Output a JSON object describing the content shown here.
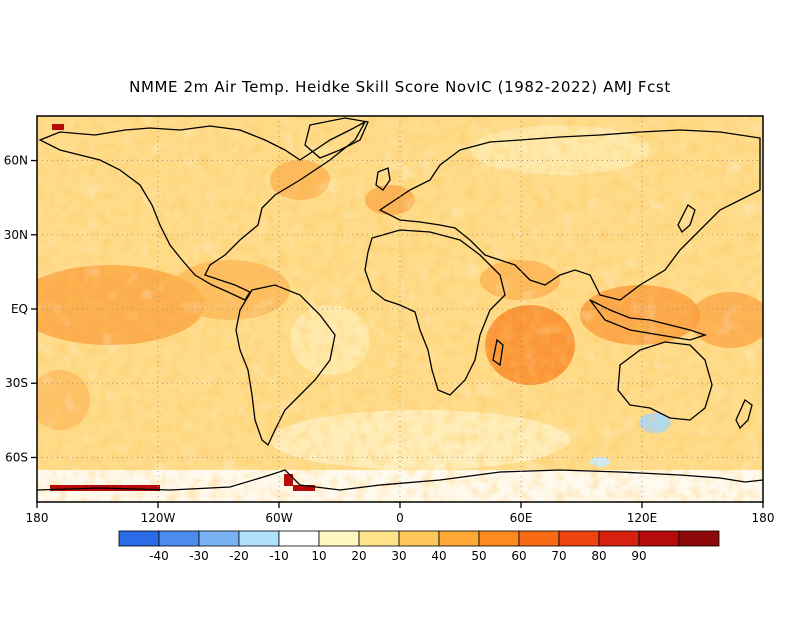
{
  "title": "NMME 2m Air Temp. Heidke Skill Score NovIC (1982-2022) AMJ Fcst",
  "map": {
    "lat_range": [
      -78,
      78
    ],
    "lon_range": [
      -180,
      180
    ],
    "lon_ticks": [
      {
        "lon": -180,
        "label": "180"
      },
      {
        "lon": -120,
        "label": "120W"
      },
      {
        "lon": -60,
        "label": "60W"
      },
      {
        "lon": 0,
        "label": "0"
      },
      {
        "lon": 60,
        "label": "60E"
      },
      {
        "lon": 120,
        "label": "120E"
      },
      {
        "lon": 180,
        "label": "180"
      }
    ],
    "lat_ticks": [
      {
        "lat": 60,
        "label": "60N"
      },
      {
        "lat": 30,
        "label": "30N"
      },
      {
        "lat": 0,
        "label": "EQ"
      },
      {
        "lat": -30,
        "label": "30S"
      },
      {
        "lat": -60,
        "label": "60S"
      }
    ]
  },
  "colorbar": {
    "colors": [
      "#2a6be8",
      "#4c8cf0",
      "#79b3f5",
      "#b0e2fb",
      "#ffffff",
      "#fff6c2",
      "#fee38a",
      "#fec75a",
      "#fea835",
      "#fd8a1e",
      "#f96a14",
      "#ee4410",
      "#d8200e",
      "#b50b0b",
      "#8e0a0a"
    ],
    "labels": [
      "-40",
      "-30",
      "-20",
      "-10",
      "10",
      "20",
      "30",
      "40",
      "50",
      "60",
      "70",
      "80",
      "90"
    ]
  }
}
